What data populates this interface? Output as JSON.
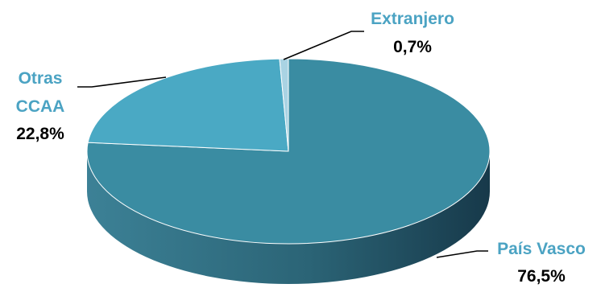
{
  "chart_data": {
    "type": "pie",
    "style": "3d",
    "title": "",
    "slices": [
      {
        "label": "País Vasco",
        "value": 76.5,
        "value_label": "76,5%",
        "color": "#3A8CA2",
        "side_color": "#2A6679"
      },
      {
        "label": "Otras CCAA",
        "label_lines": [
          "Otras",
          "CCAA"
        ],
        "value": 22.8,
        "value_label": "22,8%",
        "color": "#4AA9C4",
        "side_color": "#357E93"
      },
      {
        "label": "Extranjero",
        "value": 0.7,
        "value_label": "0,7%",
        "color": "#A9D3E3",
        "side_color": "#7FAEC0"
      }
    ],
    "label_color": "#4BA3C3",
    "legend": "none"
  }
}
